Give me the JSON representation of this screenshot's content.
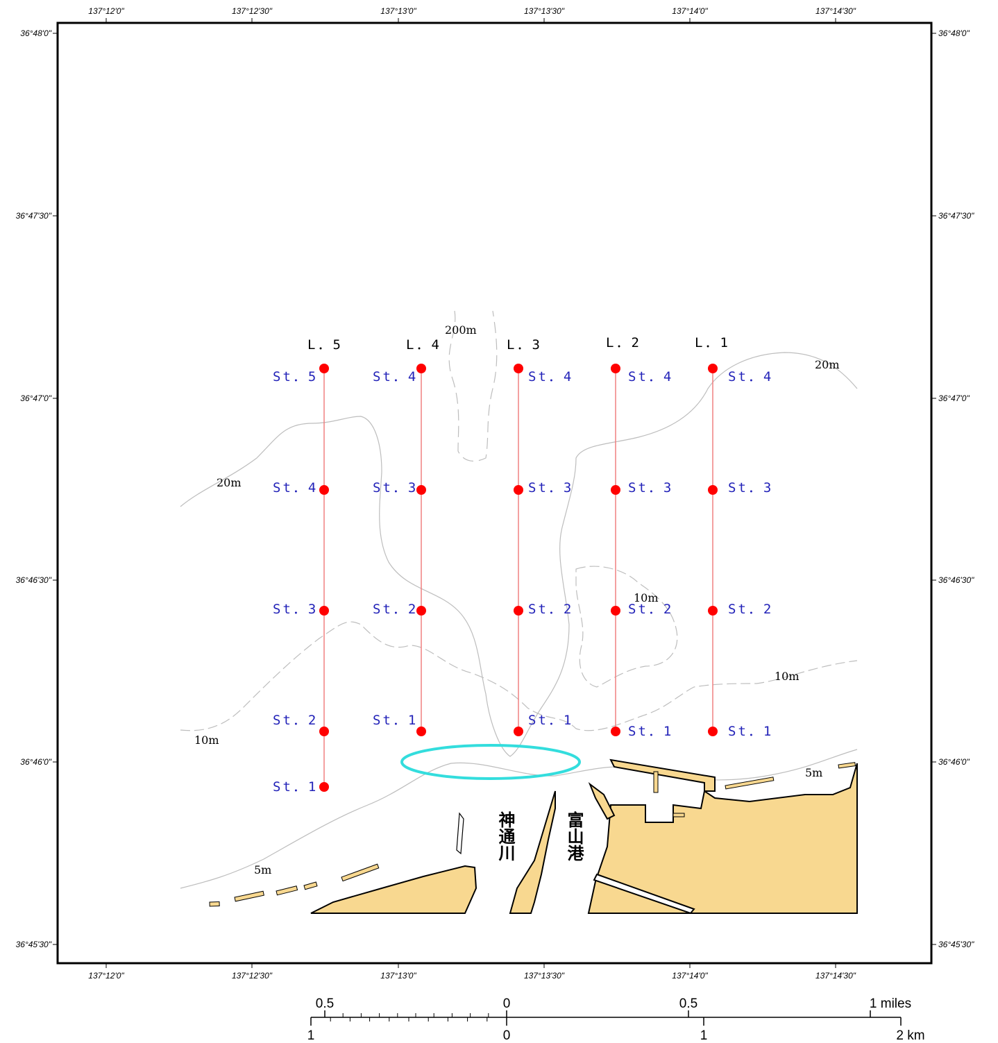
{
  "lon_labels": [
    "137°12'0\"",
    "137°12'30\"",
    "137°13'0\"",
    "137°13'30\"",
    "137°14'0\"",
    "137°14'30\""
  ],
  "lat_labels": [
    "36°48'0\"",
    "36°47'30\"",
    "36°47'0\"",
    "36°46'30\"",
    "36°46'0\"",
    "36°45'30\""
  ],
  "transects": [
    {
      "label": "L．5",
      "stations": [
        "St．1",
        "St．2",
        "St．3",
        "St．4",
        "St．5"
      ]
    },
    {
      "label": "L．4",
      "stations": [
        "St．1",
        "St．2",
        "St．3",
        "St．4"
      ]
    },
    {
      "label": "L．3",
      "stations": [
        "St．1",
        "St．2",
        "St．3",
        "St．4"
      ]
    },
    {
      "label": "L．2",
      "stations": [
        "St．1",
        "St．2",
        "St．3",
        "St．4"
      ]
    },
    {
      "label": "L．1",
      "stations": [
        "St．1",
        "St．2",
        "St．3",
        "St．4"
      ]
    }
  ],
  "depth_labels": [
    "200m",
    "20m",
    "20m",
    "10m",
    "10m",
    "10m",
    "5m",
    "5m"
  ],
  "place_names": {
    "river": "神通川",
    "port": "富山港"
  },
  "scale_bar": {
    "miles": [
      "0.5",
      "0",
      "0.5",
      "1 miles"
    ],
    "km": [
      "1",
      "0",
      "1",
      "2 km"
    ]
  },
  "colors": {
    "station": "#ff0000",
    "transect_line": "#f08080",
    "highlight": "#33dddd",
    "land": "#f8d890",
    "contour": "#c0c0c0"
  }
}
